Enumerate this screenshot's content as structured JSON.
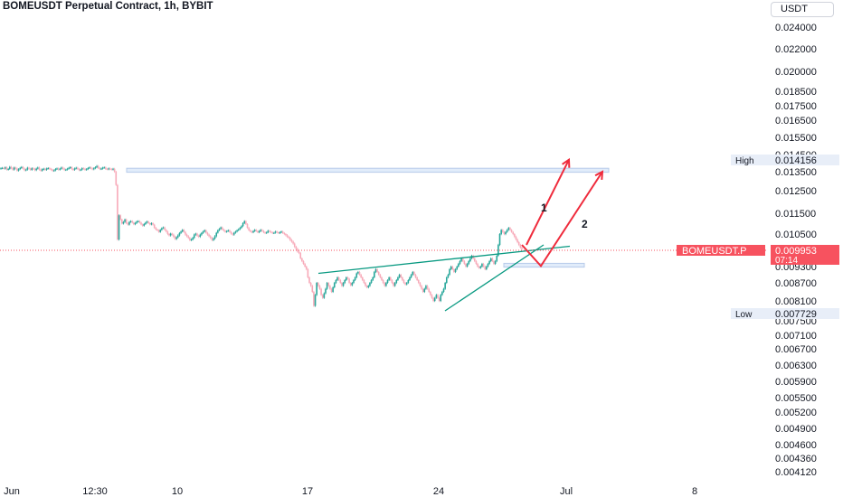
{
  "header": {
    "title": "BOMEUSDT Perpetual Contract, 1h, BYBIT",
    "currency": "USDT"
  },
  "colors": {
    "up": "#26a69a",
    "down": "#f7a9b8",
    "arrow": "#ef2b3c",
    "trendline": "#089981",
    "zone": "#e1ecfa",
    "zone_border": "#b7cbea",
    "price_tag": "#f7525f"
  },
  "chart_data": {
    "type": "candlestick",
    "instrument": "BOMEUSDT.P",
    "timeframe": "1h",
    "exchange": "BYBIT",
    "y_ticks": [
      "0.024000",
      "0.022000",
      "0.020000",
      "0.018500",
      "0.017500",
      "0.016500",
      "0.015500",
      "0.014500",
      "0.013500",
      "0.012500",
      "0.011500",
      "0.010500",
      "0.009300",
      "0.008700",
      "0.008100",
      "0.007500",
      "0.007100",
      "0.006700",
      "0.006300",
      "0.005900",
      "0.005500",
      "0.005200",
      "0.004900",
      "0.004600",
      "0.004360",
      "0.004120"
    ],
    "x_ticks": [
      "Jun",
      "12:30",
      "10",
      "17",
      "24",
      "Jul",
      "8"
    ],
    "price_labels": {
      "high": {
        "label": "High",
        "value": "0.014156"
      },
      "low": {
        "label": "Low",
        "value": "0.007729"
      },
      "last": {
        "symbol": "BOMEUSDT.P",
        "value": "0.009953",
        "countdown": "07:14"
      }
    },
    "price_path": [
      0.0137,
      0.01372,
      0.01368,
      0.01375,
      0.01362,
      0.01366,
      0.01378,
      0.0137,
      0.01362,
      0.01374,
      0.01369,
      0.01356,
      0.01365,
      0.01372,
      0.01377,
      0.01368,
      0.01358,
      0.01362,
      0.01373,
      0.01368,
      0.01361,
      0.0137,
      0.01366,
      0.01359,
      0.01368,
      0.01374,
      0.01362,
      0.01356,
      0.01364,
      0.01367,
      0.01361,
      0.01368,
      0.01371,
      0.01366,
      0.01362,
      0.01355,
      0.01358,
      0.01366,
      0.01369,
      0.01362,
      0.01367,
      0.01374,
      0.01368,
      0.0136,
      0.01362,
      0.01367,
      0.01372,
      0.01376,
      0.01365,
      0.01361,
      0.01369,
      0.01373,
      0.01366,
      0.01359,
      0.01362,
      0.0137,
      0.01367,
      0.01361,
      0.01365,
      0.01371,
      0.01375,
      0.01369,
      0.01364,
      0.0137,
      0.01376,
      0.01383,
      0.01371,
      0.01365,
      0.01368,
      0.01373,
      0.01375,
      0.01366,
      0.01364,
      0.01369,
      0.01365,
      0.01363,
      0.01367,
      0.0135,
      0.0128,
      0.0103,
      0.0114,
      0.0112,
      0.011,
      0.01108,
      0.0112,
      0.01102,
      0.01095,
      0.01108,
      0.01112,
      0.01105,
      0.01097,
      0.01103,
      0.0111,
      0.01112,
      0.01105,
      0.01096,
      0.0109,
      0.01098,
      0.01105,
      0.0111,
      0.01102,
      0.01096,
      0.01102,
      0.01095,
      0.0108,
      0.01072,
      0.01068,
      0.0106,
      0.0107,
      0.01078,
      0.01082,
      0.0107,
      0.01062,
      0.0105,
      0.01045,
      0.01052,
      0.01048,
      0.0104,
      0.01032,
      0.01038,
      0.01045,
      0.01055,
      0.01062,
      0.0107,
      0.0106,
      0.01048,
      0.01042,
      0.01036,
      0.01028,
      0.0103,
      0.01036,
      0.01048,
      0.01052,
      0.01044,
      0.0104,
      0.01048,
      0.01055,
      0.01062,
      0.01068,
      0.01056,
      0.01048,
      0.01042,
      0.01036,
      0.01028,
      0.01033,
      0.01042,
      0.01056,
      0.01068,
      0.01075,
      0.01082,
      0.01072,
      0.01066,
      0.0106,
      0.01064,
      0.01068,
      0.0106,
      0.01052,
      0.01048,
      0.01056,
      0.01062,
      0.01068,
      0.01073,
      0.0108,
      0.01088,
      0.01102,
      0.01112,
      0.01098,
      0.0108,
      0.01068,
      0.01062,
      0.01058,
      0.01064,
      0.0107,
      0.01064,
      0.01058,
      0.01064,
      0.0107,
      0.01065,
      0.01058,
      0.01054,
      0.01058,
      0.01066,
      0.01062,
      0.01058,
      0.01054,
      0.01056,
      0.01062,
      0.01058,
      0.01054,
      0.01058,
      0.01062,
      0.01055,
      0.0105,
      0.01046,
      0.0104,
      0.01036,
      0.01028,
      0.01022,
      0.01015,
      0.01003,
      0.00995,
      0.00985,
      0.0098,
      0.0096,
      0.0095,
      0.0094,
      0.0093,
      0.0092,
      0.0089,
      0.0087,
      0.0086,
      0.0084,
      0.00795,
      0.0083,
      0.0087,
      0.0086,
      0.0085,
      0.0083,
      0.0082,
      0.00835,
      0.0085,
      0.0087,
      0.0086,
      0.0085,
      0.0084,
      0.00855,
      0.0087,
      0.0088,
      0.0089,
      0.0088,
      0.0087,
      0.0086,
      0.0087,
      0.0088,
      0.0089,
      0.00885,
      0.0087,
      0.00862,
      0.0087,
      0.0088,
      0.0089,
      0.00905,
      0.0091,
      0.009,
      0.0089,
      0.0088,
      0.0087,
      0.0086,
      0.00855,
      0.0086,
      0.0087,
      0.0088,
      0.0089,
      0.0091,
      0.0092,
      0.0091,
      0.009,
      0.0089,
      0.0088,
      0.0087,
      0.0086,
      0.0087,
      0.0088,
      0.0089,
      0.0088,
      0.0087,
      0.0086,
      0.0087,
      0.0088,
      0.0089,
      0.009,
      0.0089,
      0.0088,
      0.0087,
      0.00865,
      0.0087,
      0.0088,
      0.0089,
      0.009,
      0.0091,
      0.009,
      0.0089,
      0.0088,
      0.0087,
      0.0086,
      0.0085,
      0.0084,
      0.0085,
      0.0086,
      0.0085,
      0.0084,
      0.0083,
      0.0082,
      0.0081,
      0.0082,
      0.0083,
      0.0082,
      0.0081,
      0.0083,
      0.0084,
      0.0085,
      0.0087,
      0.0089,
      0.009,
      0.0092,
      0.0093,
      0.0092,
      0.0091,
      0.0092,
      0.0093,
      0.0094,
      0.0095,
      0.0096,
      0.0095,
      0.0094,
      0.0093,
      0.0094,
      0.0095,
      0.0096,
      0.0097,
      0.0096,
      0.0095,
      0.0094,
      0.0093,
      0.00925,
      0.0093,
      0.0094,
      0.0093,
      0.0092,
      0.0093,
      0.0094,
      0.0095,
      0.0096,
      0.0095,
      0.0094,
      0.0095,
      0.0097,
      0.0101,
      0.0105,
      0.0107,
      0.0106,
      0.0105,
      0.0106,
      0.0107,
      0.0108,
      0.0107,
      0.0106,
      0.0105,
      0.0104,
      0.0103,
      0.0102,
      0.0101,
      0.01,
      0.00995
    ],
    "annotations": {
      "resistance_zone": {
        "from": 0.0137,
        "to": 0.01347
      },
      "support_zone": {
        "from": 0.00942,
        "to": 0.00928
      },
      "trendlines": [
        {
          "kind": "channel-top",
          "from": 0.00905,
          "to": 0.01005
        },
        {
          "kind": "rising-support",
          "from": 0.0078,
          "to": 0.0101
        }
      ],
      "scenarios": [
        {
          "label": "1",
          "path": [
            0.0101,
            0.0142
          ]
        },
        {
          "label": "2",
          "path": [
            0.0101,
            0.00932,
            0.0135
          ]
        }
      ]
    }
  }
}
